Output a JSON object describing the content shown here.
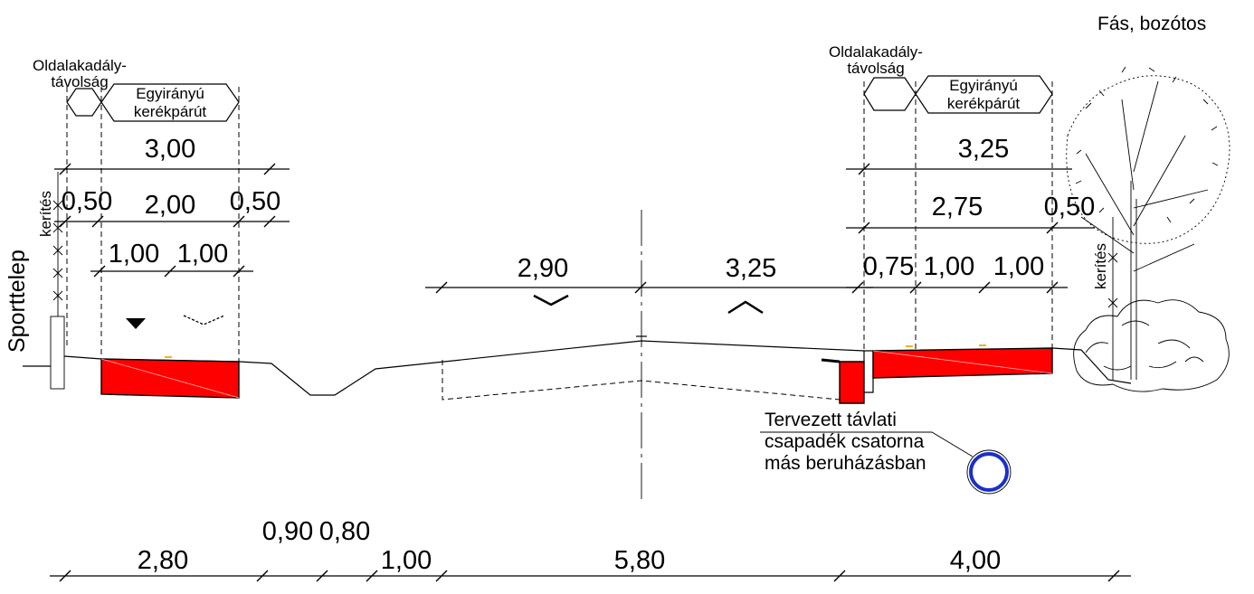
{
  "labels": {
    "top_right": "Fás, bozótos",
    "left_vertical": "Sporttelep",
    "fence": "kerítés",
    "clearance": "Oldalakadály-távolság",
    "clearance_l1": "Oldalakadály-",
    "clearance_l2": "távolság",
    "bike_l1": "Egyirányú",
    "bike_l2": "kerékpárút",
    "drain": [
      "Tervezett távlati",
      "csapadék csatorna",
      "más beruházásban"
    ]
  },
  "dims": {
    "left_top": "3,00",
    "left_mid": [
      "0,50",
      "2,00",
      "0,50"
    ],
    "left_low": [
      "1,00",
      "1,00"
    ],
    "road": [
      "2,90",
      "3,25"
    ],
    "right_top": "3,25",
    "right_mid": [
      "2,75",
      "0,50"
    ],
    "right_low": [
      "0,75",
      "1,00",
      "1,00"
    ],
    "bottom": [
      "2,80",
      "0,90",
      "0,80",
      "1,00",
      "5,80",
      "4,00"
    ]
  },
  "colors": {
    "fill_red": "#ff0000",
    "pipe_blue": "#1a2fcc",
    "marker_yellow": "#f2b21b"
  }
}
